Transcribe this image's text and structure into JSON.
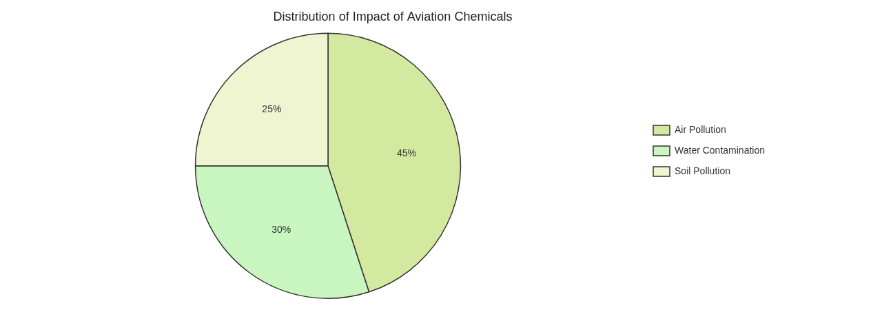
{
  "chart_data": {
    "type": "pie",
    "title": "Distribution of Impact of Aviation Chemicals",
    "categories": [
      "Air Pollution",
      "Water Contamination",
      "Soil Pollution"
    ],
    "values": [
      45,
      30,
      25
    ],
    "value_labels": [
      "45%",
      "30%",
      "25%"
    ],
    "colors": [
      "#d4e9a0",
      "#c8f5c0",
      "#eef5d0"
    ],
    "data_labels": true,
    "legend": "right"
  }
}
